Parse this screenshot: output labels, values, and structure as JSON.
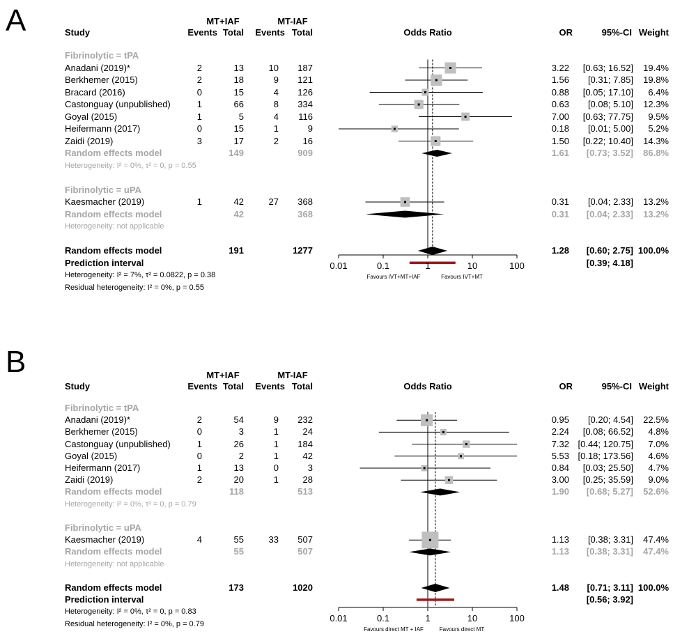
{
  "chart_data": [
    {
      "type": "forest",
      "panel_label": "A",
      "xscale": "log",
      "xlim": [
        0.01,
        100
      ],
      "xticks": [
        "0.01",
        "0.1",
        "1",
        "10",
        "100"
      ],
      "xlabel": "Odds Ratio",
      "favours_left": "Favours IVT+MT+IAF",
      "favours_right": "Favours IVT+MT",
      "overall_line": 1.28,
      "headers": {
        "study": "Study",
        "group1": "MT+IAF",
        "group2": "MT-IAF",
        "events": "Events",
        "total": "Total",
        "or": "OR",
        "ci": "95%-CI",
        "weight": "Weight"
      },
      "subgroups": [
        {
          "label": "Fibrinolytic = tPA",
          "studies": [
            {
              "name": "Anadani (2019)*",
              "e1": "2",
              "n1": "13",
              "e2": "10",
              "n2": "187",
              "or": 3.22,
              "lo": 0.63,
              "hi": 16.52,
              "or_text": "3.22",
              "ci_text": "[0.63; 16.52]",
              "weight": "19.4%",
              "w": 19.4
            },
            {
              "name": "Berkhemer (2015)",
              "e1": "2",
              "n1": "18",
              "e2": "9",
              "n2": "121",
              "or": 1.56,
              "lo": 0.31,
              "hi": 7.85,
              "or_text": "1.56",
              "ci_text": "[0.31; 7.85]",
              "weight": "19.8%",
              "w": 19.8
            },
            {
              "name": "Bracard (2016)",
              "e1": "0",
              "n1": "15",
              "e2": "4",
              "n2": "126",
              "or": 0.88,
              "lo": 0.05,
              "hi": 17.1,
              "or_text": "0.88",
              "ci_text": "[0.05; 17.10]",
              "weight": "6.4%",
              "w": 6.4
            },
            {
              "name": "Castonguay (unpublished)",
              "e1": "1",
              "n1": "66",
              "e2": "8",
              "n2": "334",
              "or": 0.63,
              "lo": 0.08,
              "hi": 5.1,
              "or_text": "0.63",
              "ci_text": "[0.08; 5.10]",
              "weight": "12.3%",
              "w": 12.3
            },
            {
              "name": "Goyal (2015)",
              "e1": "1",
              "n1": "5",
              "e2": "4",
              "n2": "116",
              "or": 7.0,
              "lo": 0.63,
              "hi": 77.75,
              "or_text": "7.00",
              "ci_text": "[0.63; 77.75]",
              "weight": "9.5%",
              "w": 9.5
            },
            {
              "name": "Heifermann (2017)",
              "e1": "0",
              "n1": "15",
              "e2": "1",
              "n2": "9",
              "or": 0.18,
              "lo": 0.01,
              "hi": 5.0,
              "or_text": "0.18",
              "ci_text": "[0.01; 5.00]",
              "weight": "5.2%",
              "w": 5.2
            },
            {
              "name": "Zaidi (2019)",
              "e1": "3",
              "n1": "17",
              "e2": "2",
              "n2": "16",
              "or": 1.5,
              "lo": 0.22,
              "hi": 10.4,
              "or_text": "1.50",
              "ci_text": "[0.22; 10.40]",
              "weight": "14.3%",
              "w": 14.3
            }
          ],
          "model": {
            "label": "Random effects model",
            "n1": "149",
            "n2": "909",
            "or": 1.61,
            "lo": 0.73,
            "hi": 3.52,
            "or_text": "1.61",
            "ci_text": "[0.73; 3.52]",
            "weight": "86.8%"
          },
          "heterogeneity": "Heterogeneity: I² = 0%, τ² = 0, p = 0.55"
        },
        {
          "label": "Fibrinolytic = uPA",
          "studies": [
            {
              "name": "Kaesmacher (2019)",
              "e1": "1",
              "n1": "42",
              "e2": "27",
              "n2": "368",
              "or": 0.31,
              "lo": 0.04,
              "hi": 2.33,
              "or_text": "0.31",
              "ci_text": "[0.04; 2.33]",
              "weight": "13.2%",
              "w": 13.2
            }
          ],
          "model": {
            "label": "Random effects model",
            "n1": "42",
            "n2": "368",
            "or": 0.31,
            "lo": 0.04,
            "hi": 2.33,
            "or_text": "0.31",
            "ci_text": "[0.04; 2.33]",
            "weight": "13.2%"
          },
          "heterogeneity": "Heterogeneity: not applicable"
        }
      ],
      "overall": {
        "label": "Random effects model",
        "n1": "191",
        "n2": "1277",
        "or": 1.28,
        "lo": 0.6,
        "hi": 2.75,
        "or_text": "1.28",
        "ci_text": "[0.60; 2.75]",
        "weight": "100.0%"
      },
      "prediction": {
        "label": "Prediction interval",
        "lo": 0.39,
        "hi": 4.18,
        "ci_text": "[0.39; 4.18]"
      },
      "heterogeneity": "Heterogeneity: I² = 7%, τ² = 0.0822, p = 0.38",
      "residual_heterogeneity": "Residual heterogeneity: I² = 0%, p = 0.55"
    },
    {
      "type": "forest",
      "panel_label": "B",
      "xscale": "log",
      "xlim": [
        0.01,
        100
      ],
      "xticks": [
        "0.01",
        "0.1",
        "1",
        "10",
        "100"
      ],
      "xlabel": "Odds Ratio",
      "favours_left": "Favours direct MT + IAF",
      "favours_right": "Favours direct MT",
      "overall_line": 1.48,
      "headers": {
        "study": "Study",
        "group1": "MT+IAF",
        "group2": "MT-IAF",
        "events": "Events",
        "total": "Total",
        "or": "OR",
        "ci": "95%-CI",
        "weight": "Weight"
      },
      "subgroups": [
        {
          "label": "Fibrinolytic = tPA",
          "studies": [
            {
              "name": "Anadani (2019)*",
              "e1": "2",
              "n1": "54",
              "e2": "9",
              "n2": "232",
              "or": 0.95,
              "lo": 0.2,
              "hi": 4.54,
              "or_text": "0.95",
              "ci_text": "[0.20; 4.54]",
              "weight": "22.5%",
              "w": 22.5
            },
            {
              "name": "Berkhemer (2015)",
              "e1": "0",
              "n1": "3",
              "e2": "1",
              "n2": "24",
              "or": 2.24,
              "lo": 0.08,
              "hi": 66.52,
              "or_text": "2.24",
              "ci_text": "[0.08; 66.52]",
              "weight": "4.8%",
              "w": 4.8
            },
            {
              "name": "Castonguay (unpublished)",
              "e1": "1",
              "n1": "26",
              "e2": "1",
              "n2": "184",
              "or": 7.32,
              "lo": 0.44,
              "hi": 120.75,
              "or_text": "7.32",
              "ci_text": "[0.44; 120.75]",
              "weight": "7.0%",
              "w": 7.0
            },
            {
              "name": "Goyal (2015)",
              "e1": "0",
              "n1": "2",
              "e2": "1",
              "n2": "42",
              "or": 5.53,
              "lo": 0.18,
              "hi": 173.56,
              "or_text": "5.53",
              "ci_text": "[0.18; 173.56]",
              "weight": "4.6%",
              "w": 4.6
            },
            {
              "name": "Heifermann (2017)",
              "e1": "1",
              "n1": "13",
              "e2": "0",
              "n2": "3",
              "or": 0.84,
              "lo": 0.03,
              "hi": 25.5,
              "or_text": "0.84",
              "ci_text": "[0.03; 25.50]",
              "weight": "4.7%",
              "w": 4.7
            },
            {
              "name": "Zaidi (2019)",
              "e1": "2",
              "n1": "20",
              "e2": "1",
              "n2": "28",
              "or": 3.0,
              "lo": 0.25,
              "hi": 35.59,
              "or_text": "3.00",
              "ci_text": "[0.25; 35.59]",
              "weight": "9.0%",
              "w": 9.0
            }
          ],
          "model": {
            "label": "Random effects model",
            "n1": "118",
            "n2": "513",
            "or": 1.9,
            "lo": 0.68,
            "hi": 5.27,
            "or_text": "1.90",
            "ci_text": "[0.68; 5.27]",
            "weight": "52.6%"
          },
          "heterogeneity": "Heterogeneity: I² = 0%, τ² = 0, p = 0.79"
        },
        {
          "label": "Fibrinolytic = uPA",
          "studies": [
            {
              "name": "Kaesmacher (2019)",
              "e1": "4",
              "n1": "55",
              "e2": "33",
              "n2": "507",
              "or": 1.13,
              "lo": 0.38,
              "hi": 3.31,
              "or_text": "1.13",
              "ci_text": "[0.38; 3.31]",
              "weight": "47.4%",
              "w": 47.4
            }
          ],
          "model": {
            "label": "Random effects model",
            "n1": "55",
            "n2": "507",
            "or": 1.13,
            "lo": 0.38,
            "hi": 3.31,
            "or_text": "1.13",
            "ci_text": "[0.38; 3.31]",
            "weight": "47.4%"
          },
          "heterogeneity": "Heterogeneity: not applicable"
        }
      ],
      "overall": {
        "label": "Random effects model",
        "n1": "173",
        "n2": "1020",
        "or": 1.48,
        "lo": 0.71,
        "hi": 3.11,
        "or_text": "1.48",
        "ci_text": "[0.71; 3.11]",
        "weight": "100.0%"
      },
      "prediction": {
        "label": "Prediction interval",
        "lo": 0.56,
        "hi": 3.92,
        "ci_text": "[0.56; 3.92]"
      },
      "heterogeneity": "Heterogeneity: I² = 0%, τ² = 0, p = 0.83",
      "residual_heterogeneity": "Residual heterogeneity: I² = 0%, p = 0.79"
    }
  ]
}
